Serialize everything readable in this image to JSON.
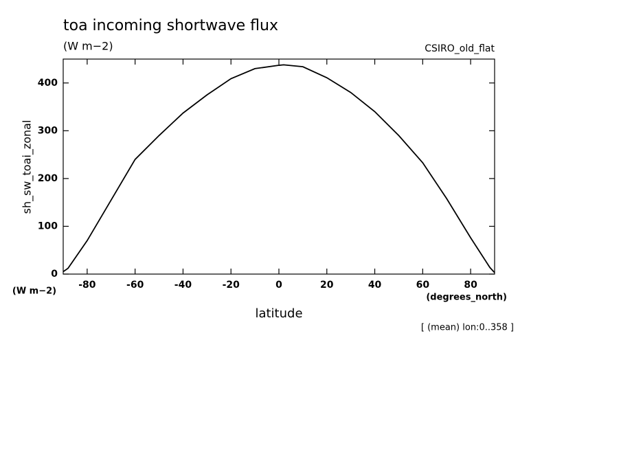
{
  "chart_data": {
    "type": "line",
    "title": "toa incoming shortwave flux",
    "subtitle": "(W m−2)",
    "dataset": "CSIRO_old_flat",
    "y_label": "sh_sw_toai_zonal",
    "y_units": "(W m−2)",
    "x_label": "latitude",
    "x_units": "(degrees_north)",
    "note": "[ (mean) lon:0..358 ]",
    "x": [
      -90,
      -88,
      -80,
      -70,
      -60,
      -50,
      -40,
      -30,
      -20,
      -10,
      0,
      2,
      10,
      20,
      30,
      40,
      50,
      60,
      70,
      80,
      88,
      90
    ],
    "series": [
      {
        "name": "sh_sw_toai_zonal",
        "color": "#000000",
        "values": [
          5,
          12,
          70,
          155,
          240,
          290,
          337,
          375,
          409,
          430,
          437,
          438,
          434,
          411,
          380,
          340,
          290,
          233,
          158,
          76,
          14,
          3
        ]
      }
    ],
    "xlim": [
      -90,
      90
    ],
    "xticks": [
      -80,
      -60,
      -40,
      -20,
      0,
      20,
      40,
      60,
      80
    ],
    "ylim": [
      0,
      450
    ],
    "yticks": [
      0,
      100,
      200,
      300,
      400
    ]
  }
}
